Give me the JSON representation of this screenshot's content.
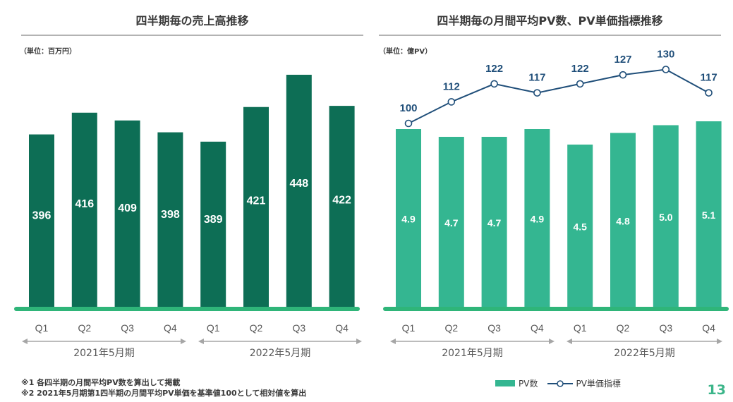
{
  "colors": {
    "revenue_bar": "#0d6e55",
    "pv_bar": "#34b691",
    "baseline": "#2fb579",
    "line": "#1f4e79",
    "axis_text": "#595959",
    "period_arrow": "#a6a6a6"
  },
  "left": {
    "title": "四半期毎の売上高推移",
    "unit": "（単位：百万円）"
  },
  "right": {
    "title": "四半期毎の月間平均PV数、PV単価指標推移",
    "unit": "（単位：億PV）"
  },
  "periods": [
    "2021年5月期",
    "2022年5月期"
  ],
  "footnotes": [
    "※1 各四半期の月間平均PV数を算出して掲載",
    "※2 2021年5月期第1四半期の月間平均PV単価を基準値100として相対値を算出"
  ],
  "legend": {
    "bar": "PV数",
    "line": "PV単価指標"
  },
  "page_number": "13",
  "chart_data": [
    {
      "type": "bar",
      "title": "四半期毎の売上高推移",
      "ylabel": "（単位：百万円）",
      "categories": [
        "Q1",
        "Q2",
        "Q3",
        "Q4",
        "Q1",
        "Q2",
        "Q3",
        "Q4"
      ],
      "groups": [
        "2021年5月期",
        "2021年5月期",
        "2021年5月期",
        "2021年5月期",
        "2022年5月期",
        "2022年5月期",
        "2022年5月期",
        "2022年5月期"
      ],
      "values": [
        396,
        416,
        409,
        398,
        389,
        421,
        448,
        422
      ],
      "ylim": [
        0,
        448
      ]
    },
    {
      "type": "bar",
      "title": "四半期毎の月間平均PV数、PV単価指標推移",
      "ylabel": "（単位：億PV）",
      "categories": [
        "Q1",
        "Q2",
        "Q3",
        "Q4",
        "Q1",
        "Q2",
        "Q3",
        "Q4"
      ],
      "groups": [
        "2021年5月期",
        "2021年5月期",
        "2021年5月期",
        "2021年5月期",
        "2022年5月期",
        "2022年5月期",
        "2022年5月期",
        "2022年5月期"
      ],
      "series": [
        {
          "name": "PV数",
          "type": "bar",
          "values": [
            4.9,
            4.7,
            4.7,
            4.9,
            4.5,
            4.8,
            5.0,
            5.1
          ],
          "labels": [
            "4.9",
            "4.7",
            "4.7",
            "4.9",
            "4.5",
            "4.8",
            "5.0",
            "5.1"
          ]
        },
        {
          "name": "PV単価指標",
          "type": "line",
          "values": [
            100,
            112,
            122,
            117,
            122,
            127,
            130,
            117
          ]
        }
      ]
    }
  ]
}
